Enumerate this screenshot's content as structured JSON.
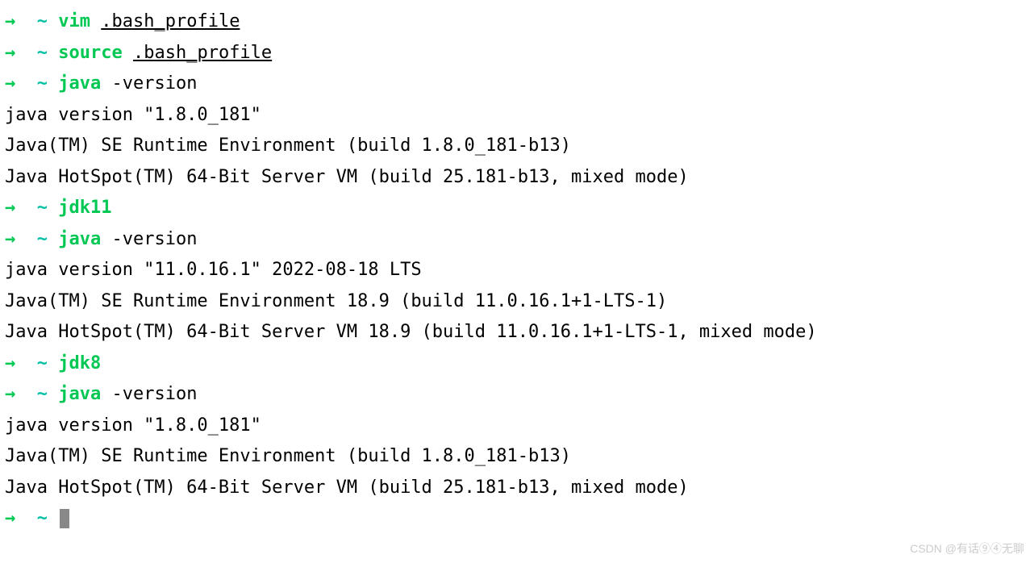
{
  "colors": {
    "background": "#ffffff",
    "text": "#000000",
    "arrow": "#00c853",
    "tilde": "#00bfa5",
    "command": "#00c853",
    "watermark": "#cccccc",
    "cursor": "#888888"
  },
  "typography": {
    "font_family": "Menlo, Monaco, Consolas, monospace",
    "font_size": 22,
    "line_height": 1.75
  },
  "prompt": {
    "arrow": "→",
    "tilde": "~"
  },
  "lines": [
    {
      "type": "prompt",
      "cmd": "vim",
      "arg": ".bash_profile",
      "underline": true
    },
    {
      "type": "prompt",
      "cmd": "source",
      "arg": ".bash_profile",
      "underline": true
    },
    {
      "type": "prompt",
      "cmd": "java",
      "arg": "-version"
    },
    {
      "type": "output",
      "text": "java version \"1.8.0_181\""
    },
    {
      "type": "output",
      "text": "Java(TM) SE Runtime Environment (build 1.8.0_181-b13)"
    },
    {
      "type": "output",
      "text": "Java HotSpot(TM) 64-Bit Server VM (build 25.181-b13, mixed mode)"
    },
    {
      "type": "prompt",
      "cmd": "jdk11",
      "arg": ""
    },
    {
      "type": "prompt",
      "cmd": "java",
      "arg": "-version"
    },
    {
      "type": "output",
      "text": "java version \"11.0.16.1\" 2022-08-18 LTS"
    },
    {
      "type": "output",
      "text": "Java(TM) SE Runtime Environment 18.9 (build 11.0.16.1+1-LTS-1)"
    },
    {
      "type": "output",
      "text": "Java HotSpot(TM) 64-Bit Server VM 18.9 (build 11.0.16.1+1-LTS-1, mixed mode)"
    },
    {
      "type": "prompt",
      "cmd": "jdk8",
      "arg": ""
    },
    {
      "type": "prompt",
      "cmd": "java",
      "arg": "-version"
    },
    {
      "type": "output",
      "text": "java version \"1.8.0_181\""
    },
    {
      "type": "output",
      "text": "Java(TM) SE Runtime Environment (build 1.8.0_181-b13)"
    },
    {
      "type": "output",
      "text": "Java HotSpot(TM) 64-Bit Server VM (build 25.181-b13, mixed mode)"
    },
    {
      "type": "prompt-cursor"
    }
  ],
  "watermark": "CSDN @有话⑨④无聊"
}
